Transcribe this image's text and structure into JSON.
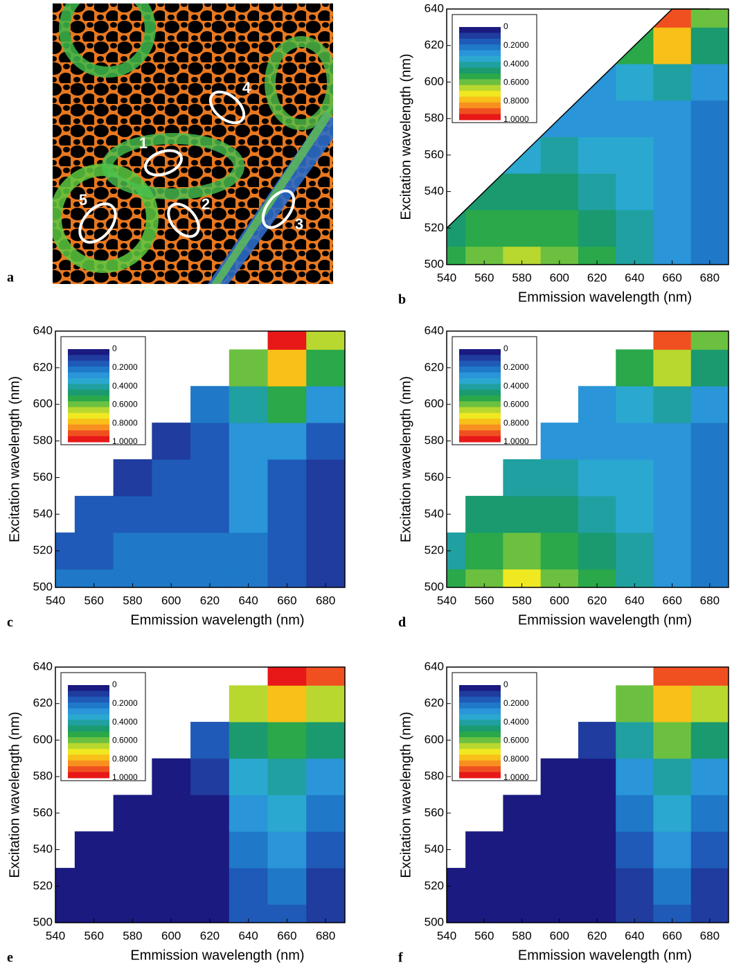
{
  "image": {
    "label": "a",
    "annotations": [
      "1",
      "2",
      "3",
      "4",
      "5"
    ]
  },
  "chart_data": [
    {
      "type": "contour",
      "label": "b",
      "xlabel": "Emmission wavelength (nm)",
      "ylabel": "Excitation wavelength (nm)",
      "x": [
        540,
        560,
        580,
        600,
        620,
        640,
        660,
        680
      ],
      "y": [
        500,
        520,
        540,
        560,
        580,
        600,
        620,
        640
      ],
      "z": [
        [
          0.5,
          0.6,
          0.68,
          0.6,
          0.5,
          0.42,
          0.3,
          0.22
        ],
        [
          0.45,
          0.5,
          0.55,
          0.5,
          0.45,
          0.4,
          0.3,
          0.22
        ],
        [
          null,
          0.45,
          0.45,
          0.45,
          0.42,
          0.36,
          0.3,
          0.22
        ],
        [
          null,
          null,
          0.35,
          0.38,
          0.35,
          0.32,
          0.28,
          0.22
        ],
        [
          null,
          null,
          null,
          0.25,
          0.3,
          0.3,
          0.28,
          0.22
        ],
        [
          null,
          null,
          null,
          null,
          0.3,
          0.35,
          0.4,
          0.3
        ],
        [
          null,
          null,
          null,
          null,
          null,
          0.5,
          0.75,
          0.45
        ],
        [
          null,
          null,
          null,
          null,
          null,
          null,
          0.9,
          0.6
        ]
      ],
      "xlim": [
        540,
        690
      ],
      "ylim": [
        500,
        640
      ],
      "xticks": [
        540,
        560,
        580,
        600,
        620,
        640,
        660,
        680
      ],
      "yticks": [
        500,
        520,
        540,
        560,
        580,
        600,
        620,
        640
      ],
      "colorbar": [
        0,
        {
          "value": 0.2,
          "label": "0.2000"
        },
        {
          "value": 0.4,
          "label": "0.4000"
        },
        {
          "value": 0.6,
          "label": "0.6000"
        },
        {
          "value": 0.8,
          "label": "0.8000"
        },
        {
          "value": 1,
          "label": "1.0000"
        }
      ],
      "colorscale": [
        "#1a1a80",
        "#1f3c9e",
        "#1f5ab8",
        "#1f78c8",
        "#2a95d8",
        "#2aa8d0",
        "#20a0a0",
        "#1a9a6e",
        "#2aa84a",
        "#6cc040",
        "#b8d830",
        "#f0e820",
        "#f8c018",
        "#f89020",
        "#f05020",
        "#e81818"
      ]
    },
    {
      "type": "contour",
      "label": "c",
      "xlabel": "Emmission wavelength (nm)",
      "ylabel": "Excitation wavelength (nm)",
      "x": [
        540,
        560,
        580,
        600,
        620,
        640,
        660,
        680
      ],
      "y": [
        500,
        520,
        540,
        560,
        580,
        600,
        620,
        640
      ],
      "z": [
        [
          0.22,
          0.22,
          0.2,
          0.2,
          0.2,
          0.2,
          0.15,
          0.12
        ],
        [
          0.15,
          0.17,
          0.2,
          0.2,
          0.2,
          0.22,
          0.15,
          0.12
        ],
        [
          null,
          0.13,
          0.15,
          0.15,
          0.15,
          0.25,
          0.15,
          0.12
        ],
        [
          null,
          null,
          0.1,
          0.13,
          0.15,
          0.25,
          0.18,
          0.12
        ],
        [
          null,
          null,
          null,
          0.08,
          0.17,
          0.3,
          0.25,
          0.15
        ],
        [
          null,
          null,
          null,
          null,
          0.2,
          0.4,
          0.5,
          0.3
        ],
        [
          null,
          null,
          null,
          null,
          null,
          0.6,
          0.8,
          0.5
        ],
        [
          null,
          null,
          null,
          null,
          null,
          null,
          0.95,
          0.65
        ]
      ],
      "xlim": [
        540,
        690
      ],
      "ylim": [
        500,
        640
      ],
      "xticks": [
        540,
        560,
        580,
        600,
        620,
        640,
        660,
        680
      ],
      "yticks": [
        500,
        520,
        540,
        560,
        580,
        600,
        620,
        640
      ],
      "colorbar": [
        0,
        {
          "value": 0.2,
          "label": "0.2000"
        },
        {
          "value": 0.4,
          "label": "0.4000"
        },
        {
          "value": 0.6,
          "label": "0.6000"
        },
        {
          "value": 0.8,
          "label": "0.8000"
        },
        {
          "value": 1,
          "label": "1.0000"
        }
      ],
      "colorscale": [
        "#1a1a80",
        "#1f3c9e",
        "#1f5ab8",
        "#1f78c8",
        "#2a95d8",
        "#2aa8d0",
        "#20a0a0",
        "#1a9a6e",
        "#2aa84a",
        "#6cc040",
        "#b8d830",
        "#f0e820",
        "#f8c018",
        "#f89020",
        "#f05020",
        "#e81818"
      ]
    },
    {
      "type": "contour",
      "label": "d",
      "xlabel": "Emmission wavelength (nm)",
      "ylabel": "Excitation wavelength (nm)",
      "x": [
        540,
        560,
        580,
        600,
        620,
        640,
        660,
        680
      ],
      "y": [
        500,
        520,
        540,
        560,
        580,
        600,
        620,
        640
      ],
      "z": [
        [
          0.5,
          0.62,
          0.7,
          0.62,
          0.52,
          0.42,
          0.3,
          0.2
        ],
        [
          0.42,
          0.52,
          0.58,
          0.52,
          0.45,
          0.4,
          0.3,
          0.2
        ],
        [
          null,
          0.45,
          0.48,
          0.45,
          0.4,
          0.36,
          0.28,
          0.2
        ],
        [
          null,
          null,
          0.38,
          0.4,
          0.35,
          0.32,
          0.28,
          0.22
        ],
        [
          null,
          null,
          null,
          0.28,
          0.3,
          0.3,
          0.28,
          0.22
        ],
        [
          null,
          null,
          null,
          null,
          0.3,
          0.35,
          0.42,
          0.3
        ],
        [
          null,
          null,
          null,
          null,
          null,
          0.52,
          0.65,
          0.45
        ],
        [
          null,
          null,
          null,
          null,
          null,
          null,
          0.92,
          0.6
        ]
      ],
      "xlim": [
        540,
        690
      ],
      "ylim": [
        500,
        640
      ],
      "xticks": [
        540,
        560,
        580,
        600,
        620,
        640,
        660,
        680
      ],
      "yticks": [
        500,
        520,
        540,
        560,
        580,
        600,
        620,
        640
      ],
      "colorbar": [
        0,
        {
          "value": 0.2,
          "label": "0.2000"
        },
        {
          "value": 0.4,
          "label": "0.4000"
        },
        {
          "value": 0.6,
          "label": "0.6000"
        },
        {
          "value": 0.8,
          "label": "0.8000"
        },
        {
          "value": 1,
          "label": "1.0000"
        }
      ],
      "colorscale": [
        "#1a1a80",
        "#1f3c9e",
        "#1f5ab8",
        "#1f78c8",
        "#2a95d8",
        "#2aa8d0",
        "#20a0a0",
        "#1a9a6e",
        "#2aa84a",
        "#6cc040",
        "#b8d830",
        "#f0e820",
        "#f8c018",
        "#f89020",
        "#f05020",
        "#e81818"
      ]
    },
    {
      "type": "contour",
      "label": "e",
      "xlabel": "Emmission wavelength (nm)",
      "ylabel": "Excitation wavelength (nm)",
      "x": [
        540,
        560,
        580,
        600,
        620,
        640,
        660,
        680
      ],
      "y": [
        500,
        520,
        540,
        560,
        580,
        600,
        620,
        640
      ],
      "z": [
        [
          0,
          0,
          0,
          0,
          0.05,
          0.15,
          0.15,
          0.12
        ],
        [
          0,
          0,
          0,
          0,
          0.05,
          0.15,
          0.2,
          0.12
        ],
        [
          null,
          0,
          0,
          0,
          0.05,
          0.2,
          0.28,
          0.15
        ],
        [
          null,
          null,
          0,
          0,
          0.05,
          0.25,
          0.35,
          0.2
        ],
        [
          null,
          null,
          null,
          0,
          0.1,
          0.35,
          0.4,
          0.3
        ],
        [
          null,
          null,
          null,
          null,
          0.15,
          0.45,
          0.55,
          0.45
        ],
        [
          null,
          null,
          null,
          null,
          null,
          0.65,
          0.75,
          0.65
        ],
        [
          null,
          null,
          null,
          null,
          null,
          null,
          0.95,
          0.9
        ]
      ],
      "xlim": [
        540,
        690
      ],
      "ylim": [
        500,
        640
      ],
      "xticks": [
        540,
        560,
        580,
        600,
        620,
        640,
        660,
        680
      ],
      "yticks": [
        500,
        520,
        540,
        560,
        580,
        600,
        620,
        640
      ],
      "colorbar": [
        0,
        {
          "value": 0.2,
          "label": "0.2000"
        },
        {
          "value": 0.4,
          "label": "0.4000"
        },
        {
          "value": 0.6,
          "label": "0.6000"
        },
        {
          "value": 0.8,
          "label": "0.8000"
        },
        {
          "value": 1,
          "label": "1.0000"
        }
      ],
      "colorscale": [
        "#1a1a80",
        "#1f3c9e",
        "#1f5ab8",
        "#1f78c8",
        "#2a95d8",
        "#2aa8d0",
        "#20a0a0",
        "#1a9a6e",
        "#2aa84a",
        "#6cc040",
        "#b8d830",
        "#f0e820",
        "#f8c018",
        "#f89020",
        "#f05020",
        "#e81818"
      ]
    },
    {
      "type": "contour",
      "label": "f",
      "xlabel": "Emmission wavelength (nm)",
      "ylabel": "Excitation wavelength (nm)",
      "x": [
        540,
        560,
        580,
        600,
        620,
        640,
        660,
        680
      ],
      "y": [
        500,
        520,
        540,
        560,
        580,
        600,
        620,
        640
      ],
      "z": [
        [
          0,
          0,
          0,
          0,
          0.02,
          0.12,
          0.15,
          0.12
        ],
        [
          0,
          0,
          0,
          0,
          0.02,
          0.12,
          0.2,
          0.12
        ],
        [
          null,
          0,
          0,
          0,
          0.02,
          0.15,
          0.28,
          0.18
        ],
        [
          null,
          null,
          0,
          0,
          0.02,
          0.22,
          0.35,
          0.22
        ],
        [
          null,
          null,
          null,
          0,
          0.05,
          0.3,
          0.42,
          0.3
        ],
        [
          null,
          null,
          null,
          null,
          0.1,
          0.42,
          0.58,
          0.45
        ],
        [
          null,
          null,
          null,
          null,
          null,
          0.62,
          0.75,
          0.65
        ],
        [
          null,
          null,
          null,
          null,
          null,
          null,
          0.92,
          0.9
        ]
      ],
      "xlim": [
        540,
        690
      ],
      "ylim": [
        500,
        640
      ],
      "xticks": [
        540,
        560,
        580,
        600,
        620,
        640,
        660,
        680
      ],
      "yticks": [
        500,
        520,
        540,
        560,
        580,
        600,
        620,
        640
      ],
      "colorbar": [
        0,
        {
          "value": 0.2,
          "label": "0.2000"
        },
        {
          "value": 0.4,
          "label": "0.4000"
        },
        {
          "value": 0.6,
          "label": "0.6000"
        },
        {
          "value": 0.8,
          "label": "0.8000"
        },
        {
          "value": 1,
          "label": "1.0000"
        }
      ],
      "colorscale": [
        "#1a1a80",
        "#1f3c9e",
        "#1f5ab8",
        "#1f78c8",
        "#2a95d8",
        "#2aa8d0",
        "#20a0a0",
        "#1a9a6e",
        "#2aa84a",
        "#6cc040",
        "#b8d830",
        "#f0e820",
        "#f8c018",
        "#f89020",
        "#f05020",
        "#e81818"
      ]
    }
  ]
}
